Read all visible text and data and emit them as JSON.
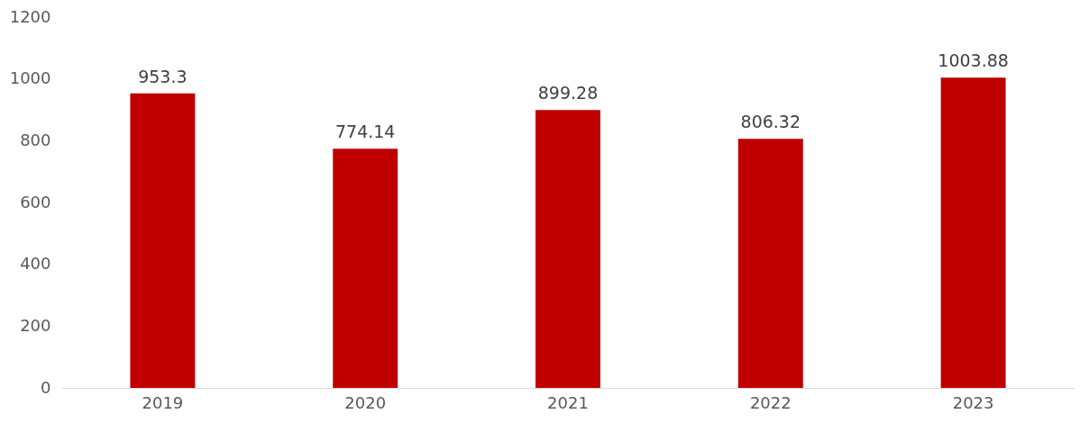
{
  "chart_data": {
    "type": "bar",
    "categories": [
      "2019",
      "2020",
      "2021",
      "2022",
      "2023"
    ],
    "values": [
      953.3,
      774.14,
      899.28,
      806.32,
      1003.88
    ],
    "color": "#c00000",
    "ylim": [
      0,
      1200
    ],
    "yticks": [
      0,
      200,
      400,
      600,
      800,
      1000,
      1200
    ],
    "data_labels": true,
    "grid": false
  }
}
